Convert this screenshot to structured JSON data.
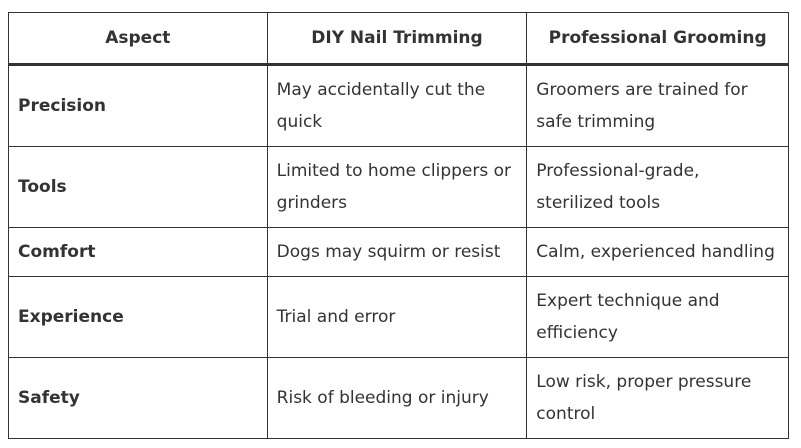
{
  "headers": [
    "Aspect",
    "DIY Nail Trimming",
    "Professional Grooming"
  ],
  "rows": [
    {
      "aspect": "Precision",
      "diy": "May accidentally cut the quick",
      "pro": "Groomers are trained for safe trimming"
    },
    {
      "aspect": "Tools",
      "diy": "Limited to home clippers or grinders",
      "pro": "Professional-grade, sterilized tools"
    },
    {
      "aspect": "Comfort",
      "diy": "Dogs may squirm or resist",
      "pro": "Calm, experienced handling"
    },
    {
      "aspect": "Experience",
      "diy": "Trial and error",
      "pro": "Expert technique and efficiency"
    },
    {
      "aspect": "Safety",
      "diy": "Risk of bleeding or injury",
      "pro": "Low risk, proper pressure control"
    }
  ]
}
